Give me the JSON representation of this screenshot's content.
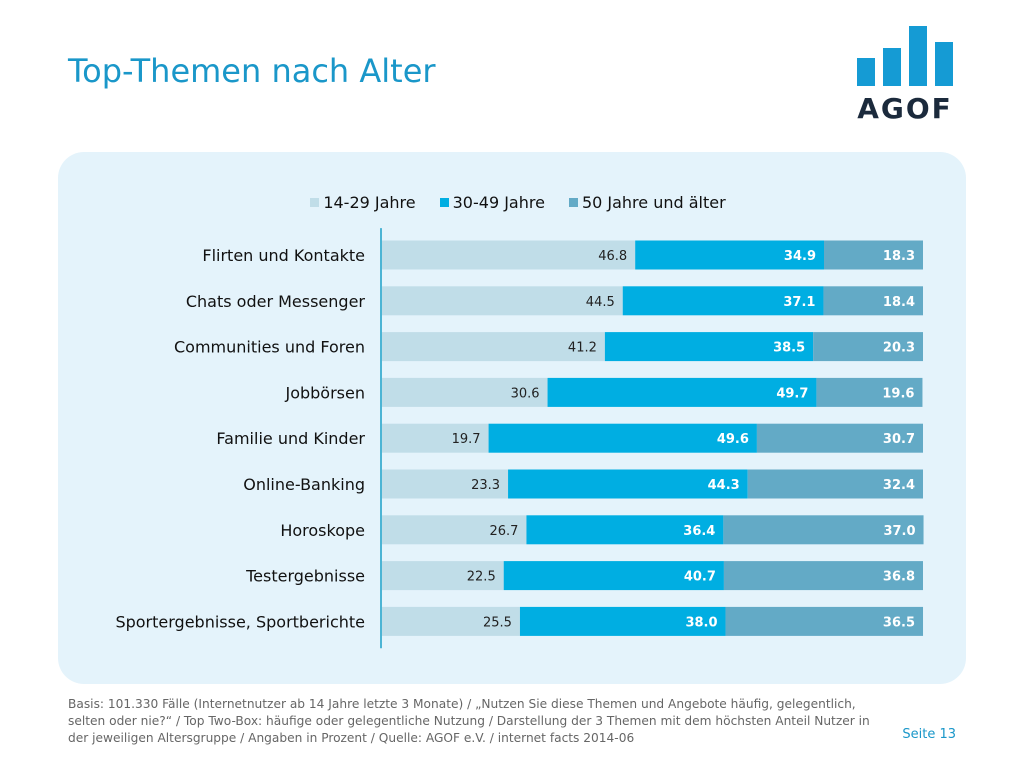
{
  "page": {
    "title": "Top-Themen nach Alter",
    "logo_text": "AGOF",
    "footnote": "Basis: 101.330 Fälle (Internetnutzer ab 14 Jahre letzte 3 Monate) / „Nutzen Sie diese Themen und Angebote häufig, gelegentlich, selten oder nie?“ / Top Two-Box: häufige oder gelegentliche Nutzung / Darstellung der 3 Themen mit dem höchsten Anteil Nutzer in der jeweiligen Altersgruppe / Angaben in Prozent / Quelle: AGOF e.V. / internet facts 2014-06",
    "page_number": "Seite 13",
    "colors": {
      "accent": "#1a97c9",
      "logo_bars": "#159bd4",
      "panel_bg": "#e4f3fb"
    }
  },
  "chart_data": {
    "type": "bar",
    "orientation": "horizontal",
    "stacked": true,
    "title": "",
    "xlabel": "",
    "ylabel": "",
    "xlim": [
      0,
      100
    ],
    "grid": false,
    "legend_position": "top",
    "categories": [
      "Flirten und Kontakte",
      "Chats oder Messenger",
      "Communities und Foren",
      "Jobbörsen",
      "Familie und Kinder",
      "Online-Banking",
      "Horoskope",
      "Testergebnisse",
      "Sportergebnisse, Sportberichte"
    ],
    "series": [
      {
        "name": "14-29 Jahre",
        "color": "#c0dde8",
        "label_color": "#222222",
        "values": [
          46.8,
          44.5,
          41.2,
          30.6,
          19.7,
          23.3,
          26.7,
          22.5,
          25.5
        ]
      },
      {
        "name": "30-49 Jahre",
        "color": "#00aee2",
        "label_color": "#ffffff",
        "values": [
          34.9,
          37.1,
          38.5,
          49.7,
          49.6,
          44.3,
          36.4,
          40.7,
          38.0
        ]
      },
      {
        "name": "50 Jahre und älter",
        "color": "#63aac6",
        "label_color": "#ffffff",
        "values": [
          18.3,
          18.4,
          20.3,
          19.6,
          30.7,
          32.4,
          37.0,
          36.8,
          36.5
        ]
      }
    ]
  }
}
